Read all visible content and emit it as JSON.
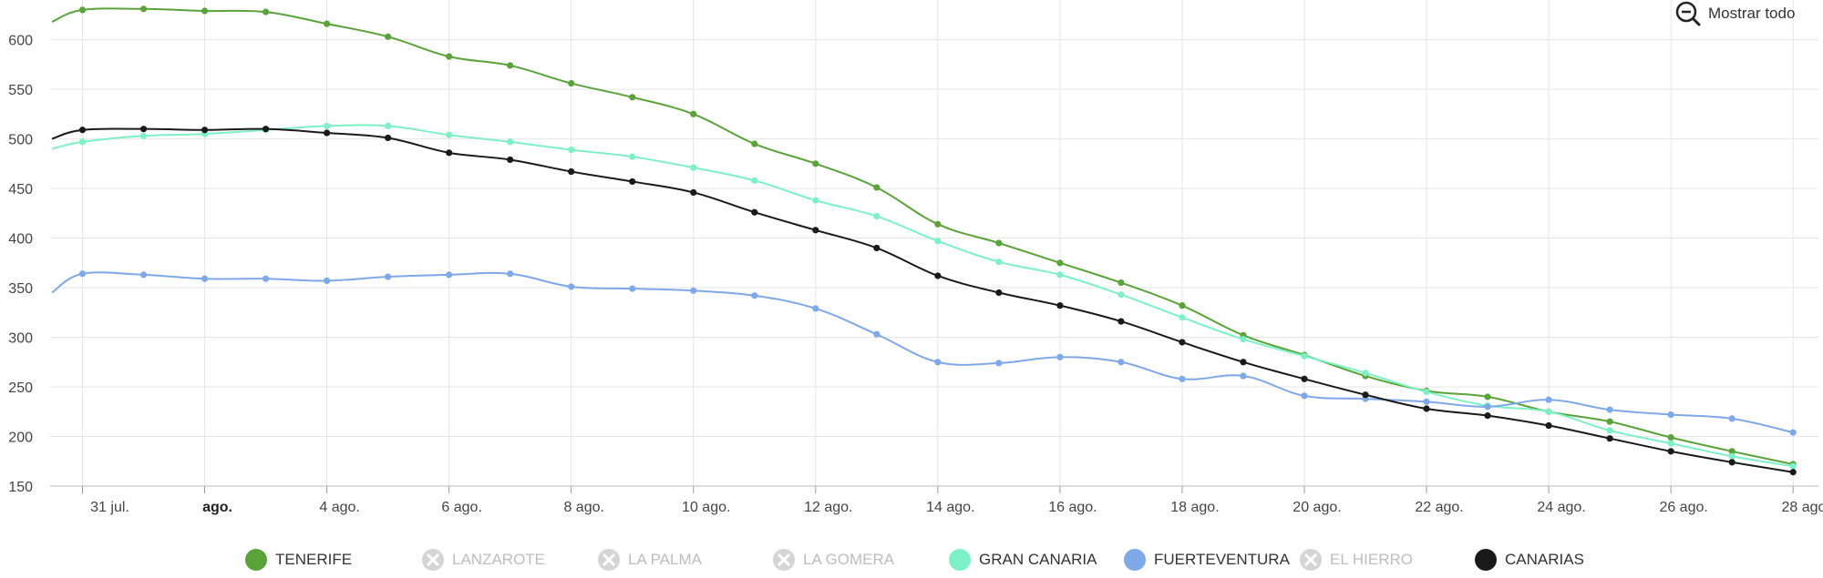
{
  "reset_zoom": {
    "label": "Mostrar todo",
    "icon": "zoom-out-icon"
  },
  "legend": [
    {
      "name": "TENERIFE",
      "visible": true,
      "color": "#5aa33a"
    },
    {
      "name": "LANZAROTE",
      "visible": false,
      "color": "#cccccc"
    },
    {
      "name": "LA PALMA",
      "visible": false,
      "color": "#cccccc"
    },
    {
      "name": "LA GOMERA",
      "visible": false,
      "color": "#cccccc"
    },
    {
      "name": "GRAN CANARIA",
      "visible": true,
      "color": "#7df0c5"
    },
    {
      "name": "FUERTEVENTURA",
      "visible": true,
      "color": "#7fa8e8"
    },
    {
      "name": "EL HIERRO",
      "visible": false,
      "color": "#cccccc"
    },
    {
      "name": "CANARIAS",
      "visible": true,
      "color": "#1a1a1a"
    }
  ],
  "chart_data": {
    "type": "line",
    "title": "",
    "xlabel": "",
    "ylabel": "",
    "ylim": [
      150,
      640
    ],
    "yticks": [
      150,
      200,
      250,
      300,
      350,
      400,
      450,
      500,
      550,
      600
    ],
    "x_start_day": -0.5,
    "x_end_day": 28.4,
    "x": [
      0,
      1,
      2,
      3,
      4,
      5,
      6,
      7,
      8,
      9,
      10,
      11,
      12,
      13,
      14,
      15,
      16,
      17,
      18,
      19,
      20,
      21,
      22,
      23,
      24,
      25,
      26,
      27,
      28
    ],
    "xticks": [
      {
        "day": 0,
        "label": "31 jul.",
        "bold": false
      },
      {
        "day": 2,
        "label": "ago.",
        "bold": true
      },
      {
        "day": 4,
        "label": "4 ago.",
        "bold": false
      },
      {
        "day": 6,
        "label": "6 ago.",
        "bold": false
      },
      {
        "day": 8,
        "label": "8 ago.",
        "bold": false
      },
      {
        "day": 10,
        "label": "10 ago.",
        "bold": false
      },
      {
        "day": 12,
        "label": "12 ago.",
        "bold": false
      },
      {
        "day": 14,
        "label": "14 ago.",
        "bold": false
      },
      {
        "day": 16,
        "label": "16 ago.",
        "bold": false
      },
      {
        "day": 18,
        "label": "18 ago.",
        "bold": false
      },
      {
        "day": 20,
        "label": "20 ago.",
        "bold": false
      },
      {
        "day": 22,
        "label": "22 ago.",
        "bold": false
      },
      {
        "day": 24,
        "label": "24 ago.",
        "bold": false
      },
      {
        "day": 26,
        "label": "26 ago.",
        "bold": false
      },
      {
        "day": 28,
        "label": "28 ago.",
        "bold": false
      }
    ],
    "series": [
      {
        "name": "TENERIFE",
        "color": "#5aa33a",
        "start": 618,
        "values": [
          630,
          631,
          629,
          628,
          616,
          603,
          583,
          574,
          556,
          542,
          525,
          495,
          475,
          451,
          414,
          395,
          375,
          355,
          332,
          302,
          282,
          261,
          246,
          240,
          225,
          215,
          199,
          185,
          172
        ]
      },
      {
        "name": "GRAN CANARIA",
        "color": "#7df0c5",
        "start": 490,
        "values": [
          497,
          503,
          505,
          509,
          513,
          513,
          504,
          497,
          489,
          482,
          471,
          458,
          438,
          422,
          397,
          376,
          363,
          343,
          320,
          298,
          281,
          264,
          245,
          231,
          225,
          206,
          193,
          180,
          170
        ]
      },
      {
        "name": "FUERTEVENTURA",
        "color": "#7fa8e8",
        "start": 345,
        "values": [
          364,
          363,
          359,
          359,
          357,
          361,
          363,
          364,
          351,
          349,
          347,
          342,
          329,
          303,
          275,
          274,
          280,
          275,
          258,
          261,
          241,
          238,
          235,
          230,
          237,
          227,
          222,
          218,
          204
        ]
      },
      {
        "name": "CANARIAS",
        "color": "#1a1a1a",
        "start": 500,
        "values": [
          509,
          510,
          509,
          510,
          506,
          501,
          486,
          479,
          467,
          457,
          446,
          426,
          408,
          390,
          362,
          345,
          332,
          316,
          295,
          275,
          258,
          242,
          228,
          221,
          211,
          198,
          185,
          174,
          164
        ]
      }
    ]
  }
}
